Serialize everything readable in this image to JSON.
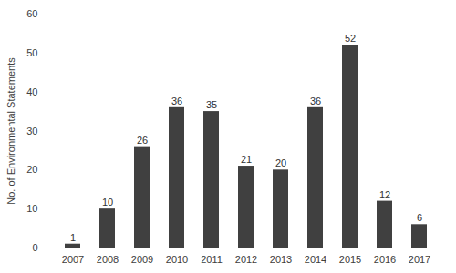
{
  "chart_data": {
    "type": "bar",
    "categories": [
      "2007",
      "2008",
      "2009",
      "2010",
      "2011",
      "2012",
      "2013",
      "2014",
      "2015",
      "2016",
      "2017"
    ],
    "values": [
      1,
      10,
      26,
      36,
      35,
      21,
      20,
      36,
      52,
      12,
      6
    ],
    "color": "#404040",
    "ylabel": "No. of Environmental Statements",
    "ylim": [
      0,
      60
    ],
    "yticks": [
      0,
      10,
      20,
      30,
      40,
      50,
      60
    ],
    "grid": false,
    "data_labels": true
  }
}
